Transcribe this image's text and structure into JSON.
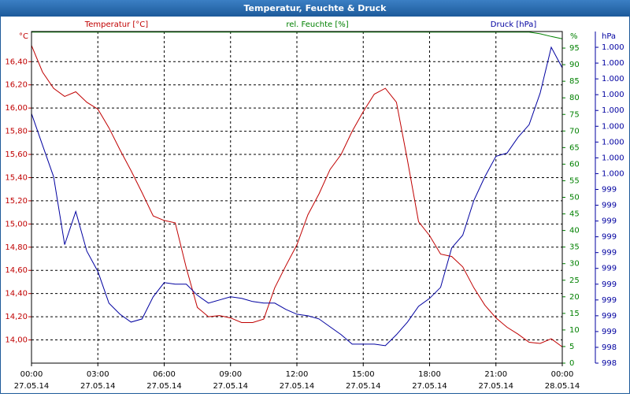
{
  "chart_data": {
    "type": "line",
    "title": "Temperatur, Feuchte & Druck",
    "y_label": "Temperatur [°C]",
    "y2_label": "rel. Feuchte [%]",
    "y3_label": "Druck [hPa]",
    "y_unit": "°C",
    "y2_unit": "%",
    "y3_unit": "hPa",
    "grid": true,
    "x": [
      0,
      0.5,
      1,
      1.5,
      2,
      2.5,
      3,
      3.5,
      4,
      4.5,
      5,
      5.5,
      6,
      6.5,
      7,
      7.5,
      8,
      8.5,
      9,
      9.5,
      10,
      10.5,
      11,
      11.5,
      12,
      12.5,
      13,
      13.5,
      14,
      14.5,
      15,
      15.5,
      16,
      16.5,
      17,
      17.5,
      18,
      18.5,
      19,
      19.5,
      20,
      20.5,
      21,
      21.5,
      22,
      22.5,
      23,
      23.5,
      24
    ],
    "xlim": [
      0,
      24
    ],
    "xticks": [
      {
        "value": 0,
        "label": "00:00"
      },
      {
        "value": 3,
        "label": "03:00"
      },
      {
        "value": 6,
        "label": "06:00"
      },
      {
        "value": 9,
        "label": "09:00"
      },
      {
        "value": 12,
        "label": "12:00"
      },
      {
        "value": 15,
        "label": "15:00"
      },
      {
        "value": 18,
        "label": "18:00"
      },
      {
        "value": 21,
        "label": "21:00"
      },
      {
        "value": 24,
        "label": "00:00"
      }
    ],
    "xtick_dates": [
      "27.05.14",
      "27.05.14",
      "27.05.14",
      "27.05.14",
      "27.05.14",
      "27.05.14",
      "27.05.14",
      "27.05.14",
      "28.05.14"
    ],
    "ylim": [
      13.8,
      16.66
    ],
    "yticks": [
      {
        "value": 14,
        "label": "14,00"
      },
      {
        "value": 14.2,
        "label": "14,20"
      },
      {
        "value": 14.4,
        "label": "14,40"
      },
      {
        "value": 14.6,
        "label": "14,60"
      },
      {
        "value": 14.8,
        "label": "14,80"
      },
      {
        "value": 15,
        "label": "15,00"
      },
      {
        "value": 15.2,
        "label": "15,20"
      },
      {
        "value": 15.4,
        "label": "15,40"
      },
      {
        "value": 15.6,
        "label": "15,60"
      },
      {
        "value": 15.8,
        "label": "15,80"
      },
      {
        "value": 16,
        "label": "16,00"
      },
      {
        "value": 16.2,
        "label": "16,20"
      },
      {
        "value": 16.4,
        "label": "16,40"
      }
    ],
    "y2lim": [
      0,
      100
    ],
    "y2ticks": [
      0,
      5,
      10,
      15,
      20,
      25,
      30,
      35,
      40,
      45,
      50,
      55,
      60,
      65,
      70,
      75,
      80,
      85,
      90,
      95
    ],
    "y3lim": [
      998.3,
      1000.4
    ],
    "y3ticks": [
      {
        "value": 998.3,
        "label": "998"
      },
      {
        "value": 998.4,
        "label": "998"
      },
      {
        "value": 998.5,
        "label": "999"
      },
      {
        "value": 998.6,
        "label": "999"
      },
      {
        "value": 998.7,
        "label": "999"
      },
      {
        "value": 998.8,
        "label": "999"
      },
      {
        "value": 998.9,
        "label": "999"
      },
      {
        "value": 999.0,
        "label": "999"
      },
      {
        "value": 999.1,
        "label": "999"
      },
      {
        "value": 999.2,
        "label": "999"
      },
      {
        "value": 999.3,
        "label": "999"
      },
      {
        "value": 999.4,
        "label": "999"
      },
      {
        "value": 999.5,
        "label": "1.000"
      },
      {
        "value": 999.6,
        "label": "1.000"
      },
      {
        "value": 999.7,
        "label": "1.000"
      },
      {
        "value": 999.8,
        "label": "1.000"
      },
      {
        "value": 999.9,
        "label": "1.000"
      },
      {
        "value": 1000.0,
        "label": "1.000"
      },
      {
        "value": 1000.1,
        "label": "1.000"
      },
      {
        "value": 1000.2,
        "label": "1.000"
      },
      {
        "value": 1000.3,
        "label": "1.000"
      }
    ],
    "series": [
      {
        "name": "Temperatur",
        "color": "#c00000",
        "axis": "y",
        "values": [
          16.54,
          16.31,
          16.17,
          16.1,
          16.14,
          16.05,
          15.99,
          15.83,
          15.64,
          15.46,
          15.27,
          15.07,
          15.03,
          15.01,
          14.62,
          14.28,
          14.2,
          14.21,
          14.19,
          14.15,
          14.15,
          14.18,
          14.45,
          14.64,
          14.82,
          15.08,
          15.26,
          15.47,
          15.6,
          15.8,
          15.97,
          16.12,
          16.17,
          16.05,
          15.55,
          15.02,
          14.9,
          14.74,
          14.72,
          14.63,
          14.45,
          14.3,
          14.19,
          14.11,
          14.05,
          13.98,
          13.97,
          14.01,
          13.94
        ]
      },
      {
        "name": "rel. Feuchte",
        "color": "#008000",
        "axis": "y2",
        "values": [
          99.8,
          99.8,
          99.8,
          99.8,
          99.8,
          99.8,
          99.8,
          99.8,
          99.8,
          99.8,
          99.8,
          99.8,
          99.8,
          99.8,
          99.8,
          99.8,
          99.8,
          99.8,
          99.8,
          99.8,
          99.8,
          99.8,
          99.8,
          99.8,
          99.8,
          99.8,
          99.8,
          99.8,
          99.8,
          99.8,
          99.8,
          99.8,
          99.8,
          99.8,
          99.8,
          99.8,
          99.8,
          99.8,
          99.8,
          99.8,
          99.8,
          99.8,
          99.8,
          99.8,
          99.8,
          99.8,
          99.3,
          98.5,
          97.8
        ]
      },
      {
        "name": "Druck",
        "color": "#0000a0",
        "axis": "y3",
        "values": [
          999.88,
          999.68,
          999.48,
          999.05,
          999.26,
          999.01,
          998.88,
          998.68,
          998.61,
          998.56,
          998.58,
          998.72,
          998.81,
          998.8,
          998.8,
          998.73,
          998.68,
          998.7,
          998.72,
          998.71,
          998.69,
          998.68,
          998.68,
          998.64,
          998.61,
          998.6,
          998.58,
          998.53,
          998.48,
          998.42,
          998.42,
          998.42,
          998.41,
          998.48,
          998.56,
          998.66,
          998.71,
          998.78,
          999.03,
          999.11,
          999.33,
          999.48,
          999.61,
          999.63,
          999.73,
          999.81,
          1000.01,
          1000.3,
          1000.17
        ]
      }
    ]
  }
}
